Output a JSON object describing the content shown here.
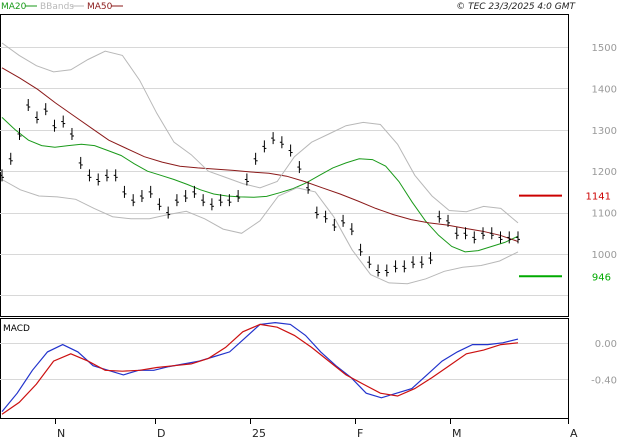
{
  "copyright": "© TEC 23/3/2025 4:0 GMT",
  "legend": [
    {
      "label": "MA20",
      "color": "#1a9a1a"
    },
    {
      "label": "BBands",
      "color": "#b8b8b8"
    },
    {
      "label": "MA50",
      "color": "#8b1a1a"
    }
  ],
  "macd_label": "MACD",
  "markers": [
    {
      "label": "1141",
      "value": 1141,
      "color": "#cc0000"
    },
    {
      "label": "946",
      "value": 946,
      "color": "#00aa00"
    }
  ],
  "chart_data": {
    "type": "line",
    "title": "",
    "x_ticks": [
      "N",
      "D",
      "25",
      "F",
      "M",
      "A"
    ],
    "price_panel": {
      "y_ticks": [
        "1500",
        "1400",
        "1300",
        "1200",
        "1100",
        "1000"
      ],
      "ylim": [
        850,
        1580
      ],
      "bars": [
        1190,
        1230,
        1290,
        1360,
        1330,
        1350,
        1310,
        1320,
        1290,
        1220,
        1190,
        1180,
        1190,
        1190,
        1150,
        1130,
        1140,
        1150,
        1120,
        1100,
        1130,
        1140,
        1150,
        1130,
        1120,
        1130,
        1130,
        1140,
        1180,
        1230,
        1260,
        1280,
        1270,
        1250,
        1210,
        1160,
        1100,
        1090,
        1070,
        1080,
        1060,
        1010,
        980,
        960,
        960,
        970,
        970,
        980,
        980,
        990,
        1090,
        1080,
        1050,
        1050,
        1040,
        1050,
        1050,
        1040,
        1040,
        1040
      ],
      "series": [
        {
          "name": "MA20",
          "color": "#1a9a1a",
          "values": [
            1330,
            1300,
            1275,
            1262,
            1258,
            1262,
            1265,
            1262,
            1250,
            1238,
            1218,
            1200,
            1190,
            1180,
            1168,
            1155,
            1145,
            1140,
            1138,
            1137,
            1139,
            1148,
            1158,
            1172,
            1190,
            1208,
            1220,
            1230,
            1228,
            1212,
            1175,
            1125,
            1080,
            1045,
            1018,
            1005,
            1008,
            1018,
            1028,
            1043
          ]
        },
        {
          "name": "MA50",
          "color": "#8b1a1a",
          "values": [
            1450,
            1425,
            1398,
            1365,
            1335,
            1305,
            1275,
            1255,
            1235,
            1222,
            1212,
            1208,
            1205,
            1202,
            1198,
            1195,
            1188,
            1175,
            1160,
            1145,
            1128,
            1110,
            1095,
            1083,
            1075,
            1070,
            1062,
            1055,
            1045,
            1030
          ]
        },
        {
          "name": "BBands Upper",
          "color": "#b8b8b8",
          "values": [
            1510,
            1480,
            1455,
            1440,
            1445,
            1470,
            1490,
            1480,
            1420,
            1340,
            1270,
            1240,
            1200,
            1185,
            1170,
            1160,
            1175,
            1235,
            1270,
            1290,
            1310,
            1318,
            1313,
            1265,
            1190,
            1140,
            1105,
            1102,
            1115,
            1110,
            1075
          ]
        },
        {
          "name": "BBands Lower",
          "color": "#b8b8b8",
          "values": [
            1180,
            1155,
            1140,
            1138,
            1132,
            1110,
            1090,
            1085,
            1085,
            1095,
            1103,
            1085,
            1060,
            1050,
            1080,
            1140,
            1160,
            1150,
            1090,
            1010,
            950,
            930,
            928,
            940,
            958,
            968,
            972,
            983,
            1005
          ]
        }
      ]
    },
    "macd_panel": {
      "y_ticks": [
        "0.00",
        "-0.40"
      ],
      "ylim": [
        -0.82,
        0.27
      ],
      "series": [
        {
          "name": "MACD",
          "color": "#2233cc",
          "values": [
            -0.75,
            -0.55,
            -0.3,
            -0.1,
            -0.02,
            -0.1,
            -0.25,
            -0.3,
            -0.35,
            -0.3,
            -0.3,
            -0.26,
            -0.23,
            -0.2,
            -0.15,
            -0.1,
            0.05,
            0.2,
            0.22,
            0.2,
            0.08,
            -0.1,
            -0.25,
            -0.38,
            -0.55,
            -0.6,
            -0.55,
            -0.5,
            -0.35,
            -0.2,
            -0.1,
            -0.02,
            -0.02,
            0.0,
            0.04
          ]
        },
        {
          "name": "Signal",
          "color": "#cc1111",
          "values": [
            -0.78,
            -0.65,
            -0.45,
            -0.2,
            -0.12,
            -0.2,
            -0.3,
            -0.31,
            -0.3,
            -0.27,
            -0.25,
            -0.23,
            -0.17,
            -0.05,
            0.12,
            0.2,
            0.17,
            0.08,
            -0.05,
            -0.2,
            -0.35,
            -0.45,
            -0.55,
            -0.58,
            -0.5,
            -0.38,
            -0.25,
            -0.12,
            -0.08,
            -0.02,
            0.0
          ]
        }
      ]
    }
  }
}
